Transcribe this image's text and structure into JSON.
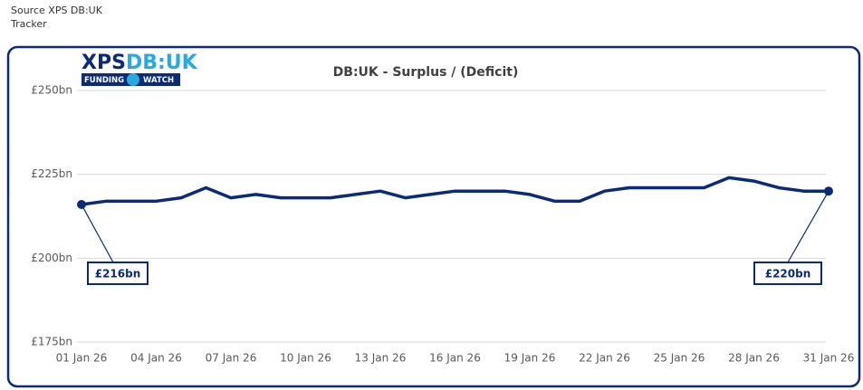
{
  "source": [
    "Source XPS DB:UK",
    "Tracker"
  ],
  "logo": {
    "main": "XPS",
    "accent": "DB:UK",
    "left": "FUNDING",
    "right": "WATCH"
  },
  "chart_data": {
    "type": "line",
    "title": "DB:UK - Surplus / (Deficit)",
    "categories": [
      "01 Jan 26",
      null,
      null,
      "04 Jan 26",
      null,
      null,
      "07 Jan 26",
      null,
      null,
      "10 Jan 26",
      null,
      null,
      "13 Jan 26",
      null,
      null,
      "16 Jan 26",
      null,
      null,
      "19 Jan 26",
      null,
      null,
      "22 Jan 26",
      null,
      null,
      "25 Jan 26",
      null,
      null,
      "28 Jan 26",
      null,
      null,
      "31 Jan 26"
    ],
    "values": [
      216,
      217,
      217,
      217,
      218,
      221,
      218,
      219,
      218,
      218,
      218,
      219,
      220,
      218,
      219,
      220,
      220,
      220,
      219,
      217,
      217,
      220,
      221,
      221,
      221,
      221,
      224,
      223,
      221,
      220,
      220
    ],
    "value_labels": [
      "£216bn",
      null,
      null,
      null,
      null,
      null,
      null,
      null,
      null,
      null,
      null,
      null,
      null,
      null,
      null,
      null,
      null,
      null,
      null,
      null,
      null,
      null,
      null,
      null,
      null,
      null,
      null,
      null,
      null,
      null,
      "£220bn"
    ],
    "color": "#0b2a78",
    "ylim": [
      175,
      250
    ],
    "yticks": [
      {
        "value": 175,
        "label": "£175bn"
      },
      {
        "value": 200,
        "label": "£200bn"
      },
      {
        "value": 225,
        "label": "£225bn"
      },
      {
        "value": 250,
        "label": "£250bn"
      }
    ],
    "grid": true
  }
}
